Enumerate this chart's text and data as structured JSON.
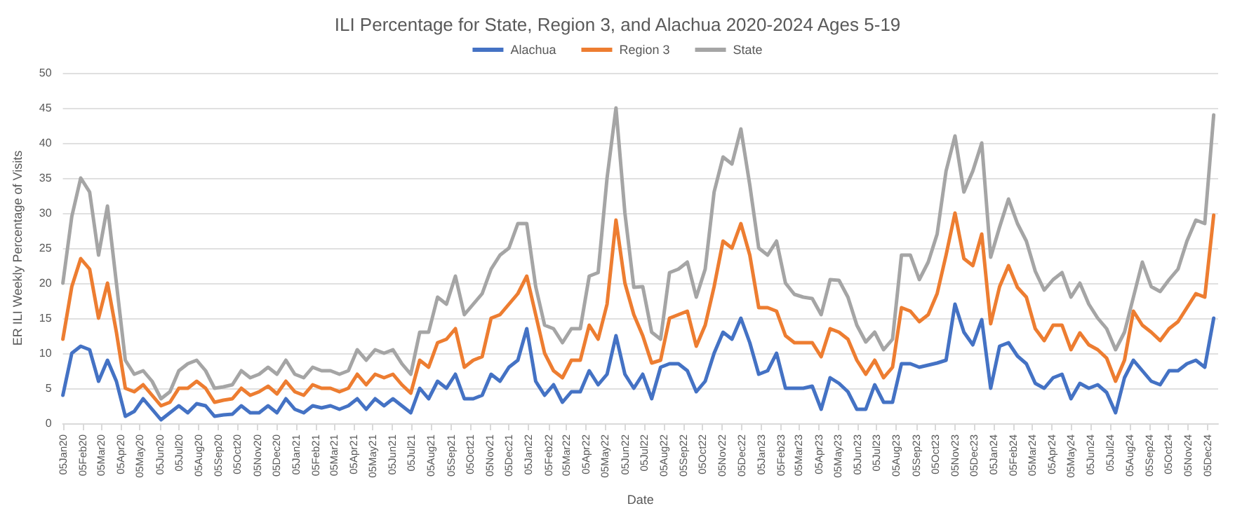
{
  "chart_data": {
    "type": "line",
    "title": "ILI Percentage for State, Region 3, and Alachua 2020-2024 Ages 5-19",
    "xlabel": "Date",
    "ylabel": "ER ILI Weekly Percentage of Visits",
    "x": [
      "2020-01-05",
      "2020-01-19",
      "2020-02-02",
      "2020-02-16",
      "2020-03-01",
      "2020-03-15",
      "2020-03-29",
      "2020-04-12",
      "2020-04-26",
      "2020-05-10",
      "2020-05-24",
      "2020-06-07",
      "2020-06-21",
      "2020-07-05",
      "2020-07-19",
      "2020-08-02",
      "2020-08-16",
      "2020-08-30",
      "2020-09-13",
      "2020-09-27",
      "2020-10-11",
      "2020-10-25",
      "2020-11-08",
      "2020-11-22",
      "2020-12-06",
      "2020-12-20",
      "2021-01-03",
      "2021-01-17",
      "2021-01-31",
      "2021-02-14",
      "2021-02-28",
      "2021-03-14",
      "2021-03-28",
      "2021-04-11",
      "2021-04-25",
      "2021-05-09",
      "2021-05-23",
      "2021-06-06",
      "2021-06-20",
      "2021-07-04",
      "2021-07-18",
      "2021-08-01",
      "2021-08-15",
      "2021-08-29",
      "2021-09-12",
      "2021-09-26",
      "2021-10-10",
      "2021-10-24",
      "2021-11-07",
      "2021-11-21",
      "2021-12-05",
      "2021-12-19",
      "2022-01-02",
      "2022-01-16",
      "2022-01-30",
      "2022-02-13",
      "2022-02-27",
      "2022-03-13",
      "2022-03-27",
      "2022-04-10",
      "2022-04-24",
      "2022-05-08",
      "2022-05-22",
      "2022-06-05",
      "2022-06-19",
      "2022-07-03",
      "2022-07-17",
      "2022-07-31",
      "2022-08-14",
      "2022-08-28",
      "2022-09-11",
      "2022-09-25",
      "2022-10-09",
      "2022-10-23",
      "2022-11-06",
      "2022-11-20",
      "2022-12-04",
      "2022-12-18",
      "2023-01-01",
      "2023-01-15",
      "2023-01-29",
      "2023-02-12",
      "2023-02-26",
      "2023-03-12",
      "2023-03-26",
      "2023-04-09",
      "2023-04-23",
      "2023-05-07",
      "2023-05-21",
      "2023-06-04",
      "2023-06-18",
      "2023-07-02",
      "2023-07-16",
      "2023-07-30",
      "2023-08-13",
      "2023-08-27",
      "2023-09-10",
      "2023-09-24",
      "2023-10-08",
      "2023-10-22",
      "2023-11-05",
      "2023-11-19",
      "2023-12-03",
      "2023-12-17",
      "2023-12-31",
      "2024-01-14",
      "2024-01-28",
      "2024-02-11",
      "2024-02-25",
      "2024-03-10",
      "2024-03-24",
      "2024-04-07",
      "2024-04-21",
      "2024-05-05",
      "2024-05-19",
      "2024-06-02",
      "2024-06-16",
      "2024-06-30",
      "2024-07-14",
      "2024-07-28",
      "2024-08-11",
      "2024-08-25",
      "2024-09-08",
      "2024-09-22",
      "2024-10-06",
      "2024-10-20",
      "2024-11-03",
      "2024-11-17",
      "2024-12-01",
      "2024-12-15"
    ],
    "series": [
      {
        "name": "Alachua",
        "color": "#4472c4",
        "values": [
          4,
          10,
          11,
          10.5,
          6,
          9,
          6,
          1,
          1.7,
          3.5,
          2,
          0.5,
          1.5,
          2.5,
          1.5,
          2.8,
          2.5,
          1,
          1.2,
          1.3,
          2.5,
          1.5,
          1.5,
          2.5,
          1.5,
          3.5,
          2,
          1.5,
          2.5,
          2.2,
          2.5,
          2,
          2.5,
          3.5,
          2,
          3.5,
          2.5,
          3.5,
          2.5,
          1.5,
          5,
          3.5,
          6,
          5,
          7,
          3.5,
          3.5,
          4,
          7,
          6,
          8,
          9,
          13.5,
          6,
          4,
          5.5,
          3,
          4.5,
          4.5,
          7.5,
          5.5,
          7,
          12.5,
          7,
          5,
          7,
          3.5,
          8,
          8.5,
          8.5,
          7.5,
          4.5,
          6,
          10,
          13,
          12,
          15,
          11.5,
          7,
          7.5,
          10,
          5,
          5,
          5,
          5.3,
          2,
          6.5,
          5.7,
          4.5,
          2,
          2,
          5.5,
          3,
          3,
          8.5,
          8.5,
          8,
          8.3,
          8.6,
          9,
          17,
          13,
          11.2,
          14.8,
          5,
          11,
          11.5,
          9.6,
          8.5,
          5.7,
          5,
          6.5,
          7,
          3.5,
          5.7,
          5,
          5.5,
          4.4,
          1.5,
          6.5,
          9,
          7.5,
          6,
          5.5,
          7.5,
          7.5,
          8.5,
          9,
          8,
          15
        ]
      },
      {
        "name": "Region 3",
        "color": "#ed7d31",
        "values": [
          12,
          19.5,
          23.5,
          22,
          15,
          20,
          13,
          5,
          4.5,
          5.5,
          4,
          2.5,
          3,
          5,
          5,
          6,
          5,
          3,
          3.3,
          3.5,
          5,
          4,
          4.5,
          5.3,
          4.2,
          6,
          4.5,
          4,
          5.5,
          5,
          5,
          4.5,
          5,
          7,
          5.5,
          7,
          6.5,
          7,
          5.5,
          4.3,
          9,
          8,
          11.5,
          12,
          13.5,
          8,
          9,
          9.5,
          15,
          15.5,
          17,
          18.5,
          21,
          15.5,
          10,
          7.5,
          6.5,
          9,
          9,
          14,
          12,
          17,
          29,
          20,
          15.5,
          12.5,
          8.6,
          9,
          15,
          15.5,
          16,
          11,
          14,
          19.5,
          26,
          25,
          28.5,
          24,
          16.5,
          16.5,
          16,
          12.5,
          11.5,
          11.5,
          11.5,
          9.5,
          13.5,
          13,
          12,
          9,
          7,
          9,
          6.5,
          8,
          16.5,
          16,
          14.5,
          15.5,
          18.5,
          24,
          30,
          23.5,
          22.5,
          27,
          14.2,
          19.5,
          22.5,
          19.4,
          18,
          13.5,
          11.8,
          14,
          14,
          10.5,
          12.9,
          11.2,
          10.5,
          9.3,
          6,
          9,
          16,
          14,
          13,
          11.8,
          13.5,
          14.5,
          16.5,
          18.5,
          18,
          29.7
        ]
      },
      {
        "name": "State",
        "color": "#a5a5a5",
        "values": [
          20,
          29.5,
          35,
          33,
          24,
          31,
          20,
          9,
          7,
          7.5,
          6,
          3.5,
          4.5,
          7.5,
          8.5,
          9,
          7.5,
          5,
          5.2,
          5.5,
          7.5,
          6.5,
          7,
          8,
          7,
          9,
          7,
          6.5,
          8,
          7.5,
          7.5,
          7,
          7.5,
          10.5,
          9,
          10.5,
          10,
          10.5,
          8.5,
          7,
          13,
          13,
          18,
          17,
          21,
          15.5,
          17,
          18.5,
          22,
          24,
          25,
          28.5,
          28.5,
          19.5,
          14,
          13.5,
          11.5,
          13.5,
          13.5,
          21,
          21.5,
          35,
          45,
          30,
          19.4,
          19.5,
          13,
          12,
          21.5,
          22,
          23,
          18,
          22,
          33,
          38,
          37,
          42,
          34,
          25,
          24,
          26,
          20,
          18.4,
          18,
          17.8,
          15.5,
          20.5,
          20.4,
          18,
          14,
          11.6,
          13,
          10.5,
          12,
          24,
          24,
          20.5,
          23,
          27,
          36,
          41,
          33,
          36,
          40,
          23.7,
          28,
          32,
          28.5,
          26,
          21.7,
          19,
          20.5,
          21.5,
          18,
          20,
          17,
          15,
          13.5,
          10.5,
          13,
          18,
          23,
          19.5,
          18.8,
          20.5,
          22,
          26,
          29,
          28.5,
          44
        ]
      }
    ],
    "xlim": [
      "2020-01-05",
      "2024-12-22"
    ],
    "xticks": [
      {
        "value": "2020-01-05",
        "label": "05Jan20"
      },
      {
        "value": "2020-02-05",
        "label": "05Feb20"
      },
      {
        "value": "2020-03-05",
        "label": "05Mar20"
      },
      {
        "value": "2020-04-05",
        "label": "05Apr20"
      },
      {
        "value": "2020-05-05",
        "label": "05May20"
      },
      {
        "value": "2020-06-05",
        "label": "05Jun20"
      },
      {
        "value": "2020-07-05",
        "label": "05Jul20"
      },
      {
        "value": "2020-08-05",
        "label": "05Aug20"
      },
      {
        "value": "2020-09-05",
        "label": "05Sep20"
      },
      {
        "value": "2020-10-05",
        "label": "05Oct20"
      },
      {
        "value": "2020-11-05",
        "label": "05Nov20"
      },
      {
        "value": "2020-12-05",
        "label": "05Dec20"
      },
      {
        "value": "2021-01-05",
        "label": "05Jan21"
      },
      {
        "value": "2021-02-05",
        "label": "05Feb21"
      },
      {
        "value": "2021-03-05",
        "label": "05Mar21"
      },
      {
        "value": "2021-04-05",
        "label": "05Apr21"
      },
      {
        "value": "2021-05-05",
        "label": "05May21"
      },
      {
        "value": "2021-06-05",
        "label": "05Jun21"
      },
      {
        "value": "2021-07-05",
        "label": "05Jul21"
      },
      {
        "value": "2021-08-05",
        "label": "05Aug21"
      },
      {
        "value": "2021-09-05",
        "label": "05Sep21"
      },
      {
        "value": "2021-10-05",
        "label": "05Oct21"
      },
      {
        "value": "2021-11-05",
        "label": "05Nov21"
      },
      {
        "value": "2021-12-05",
        "label": "05Dec21"
      },
      {
        "value": "2022-01-05",
        "label": "05Jan22"
      },
      {
        "value": "2022-02-05",
        "label": "05Feb22"
      },
      {
        "value": "2022-03-05",
        "label": "05Mar22"
      },
      {
        "value": "2022-04-05",
        "label": "05Apr22"
      },
      {
        "value": "2022-05-05",
        "label": "05May22"
      },
      {
        "value": "2022-06-05",
        "label": "05Jun22"
      },
      {
        "value": "2022-07-05",
        "label": "05Jul22"
      },
      {
        "value": "2022-08-05",
        "label": "05Aug22"
      },
      {
        "value": "2022-09-05",
        "label": "05Sep22"
      },
      {
        "value": "2022-10-05",
        "label": "05Oct22"
      },
      {
        "value": "2022-11-05",
        "label": "05Nov22"
      },
      {
        "value": "2022-12-05",
        "label": "05Dec22"
      },
      {
        "value": "2023-01-05",
        "label": "05Jan23"
      },
      {
        "value": "2023-02-05",
        "label": "05Feb23"
      },
      {
        "value": "2023-03-05",
        "label": "05Mar23"
      },
      {
        "value": "2023-04-05",
        "label": "05Apr23"
      },
      {
        "value": "2023-05-05",
        "label": "05May23"
      },
      {
        "value": "2023-06-05",
        "label": "05Jun23"
      },
      {
        "value": "2023-07-05",
        "label": "05Jul23"
      },
      {
        "value": "2023-08-05",
        "label": "05Aug23"
      },
      {
        "value": "2023-09-05",
        "label": "05Sep23"
      },
      {
        "value": "2023-10-05",
        "label": "05Oct23"
      },
      {
        "value": "2023-11-05",
        "label": "05Nov23"
      },
      {
        "value": "2023-12-05",
        "label": "05Dec23"
      },
      {
        "value": "2024-01-05",
        "label": "05Jan24"
      },
      {
        "value": "2024-02-05",
        "label": "05Feb24"
      },
      {
        "value": "2024-03-05",
        "label": "05Mar24"
      },
      {
        "value": "2024-04-05",
        "label": "05Apr24"
      },
      {
        "value": "2024-05-05",
        "label": "05May24"
      },
      {
        "value": "2024-06-05",
        "label": "05Jun24"
      },
      {
        "value": "2024-07-05",
        "label": "05Jul24"
      },
      {
        "value": "2024-08-05",
        "label": "05Aug24"
      },
      {
        "value": "2024-09-05",
        "label": "05Sep24"
      },
      {
        "value": "2024-10-05",
        "label": "05Oct24"
      },
      {
        "value": "2024-11-05",
        "label": "05Nov24"
      },
      {
        "value": "2024-12-05",
        "label": "05Dec24"
      }
    ],
    "ylim": [
      0,
      50
    ],
    "yticks": [
      0,
      5,
      10,
      15,
      20,
      25,
      30,
      35,
      40,
      45,
      50
    ],
    "grid": "y",
    "legend": "top",
    "marker": "none",
    "line_style": "solid"
  }
}
